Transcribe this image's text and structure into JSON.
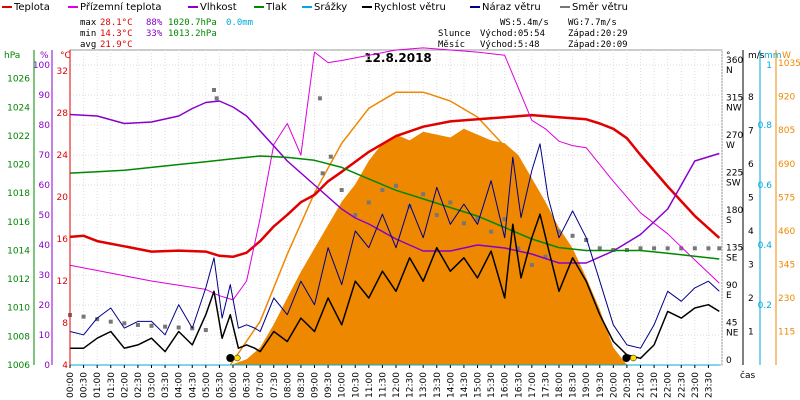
{
  "legend": [
    {
      "label": "Teplota",
      "color": "#e00000"
    },
    {
      "label": "Přízemní teplota",
      "color": "#dd00dd"
    },
    {
      "label": "Vlhkost",
      "color": "#8800cc"
    },
    {
      "label": "Tlak",
      "color": "#008800"
    },
    {
      "label": "Srážky",
      "color": "#00aadd"
    },
    {
      "label": "Rychlost větru",
      "color": "#000000"
    },
    {
      "label": "Náraz větru",
      "color": "#000088"
    },
    {
      "label": "Směr větru",
      "color": "#777777"
    }
  ],
  "stats": {
    "max": {
      "label": "max",
      "temp": "28.1°C",
      "hum": "88%",
      "press": "1020.7hPa",
      "rain": "0.0mm"
    },
    "min": {
      "label": "min",
      "temp": "14.3°C",
      "hum": "33%",
      "press": "1013.2hPa"
    },
    "avg": {
      "label": "avg",
      "temp": "21.9°C"
    }
  },
  "info": {
    "ws": "WS:5.4m/s",
    "wg": "WG:7.7m/s",
    "sun_label": "Slunce",
    "sunrise": "Východ:05:54",
    "sunset": "Západ:20:29",
    "moon_label": "Měsíc",
    "moonrise": "Východ:5:48",
    "moonset": "Západ:20:09"
  },
  "chart_data": {
    "type": "line",
    "title": "12.8.2018",
    "x_axis_label": "čas",
    "x_ticks": [
      "00:00",
      "00:30",
      "01:00",
      "01:30",
      "02:00",
      "02:30",
      "03:00",
      "03:30",
      "04:00",
      "04:30",
      "05:00",
      "05:30",
      "06:00",
      "06:30",
      "07:00",
      "07:30",
      "08:00",
      "08:30",
      "09:00",
      "09:30",
      "10:00",
      "10:30",
      "11:00",
      "11:30",
      "12:00",
      "12:30",
      "13:00",
      "13:30",
      "14:00",
      "14:30",
      "15:00",
      "15:30",
      "16:00",
      "16:30",
      "17:00",
      "17:30",
      "18:00",
      "18:30",
      "19:00",
      "19:30",
      "20:00",
      "20:30",
      "21:00",
      "21:30",
      "22:00",
      "22:30",
      "23:00",
      "23:30"
    ],
    "axes": {
      "pressure": {
        "label": "hPa",
        "ticks": [
          1006,
          1008,
          1010,
          1012,
          1014,
          1016,
          1018,
          1020,
          1022,
          1024,
          1026
        ],
        "ylim": [
          1006,
          1028
        ],
        "color": "#008800"
      },
      "humidity": {
        "label": "%",
        "ticks": [
          0,
          10,
          20,
          30,
          40,
          50,
          60,
          70,
          80,
          90,
          100
        ],
        "ylim": [
          0,
          105
        ],
        "color": "#8800cc"
      },
      "temperature": {
        "label": "°C",
        "ticks": [
          4,
          8,
          12,
          16,
          20,
          24,
          28,
          32
        ],
        "ylim": [
          4,
          34
        ],
        "color": "#e00000"
      },
      "direction": {
        "label": "°",
        "ticks": [
          {
            "v": 0,
            "t": "0"
          },
          {
            "v": 45,
            "t": "45 NE"
          },
          {
            "v": 90,
            "t": "90 E"
          },
          {
            "v": 135,
            "t": "135 SE"
          },
          {
            "v": 180,
            "t": "180 S"
          },
          {
            "v": 225,
            "t": "225 SW"
          },
          {
            "v": 270,
            "t": "270 W"
          },
          {
            "v": 315,
            "t": "315 NW"
          },
          {
            "v": 360,
            "t": "360 N"
          }
        ],
        "ylim": [
          0,
          378
        ]
      },
      "wind": {
        "label": "m/s",
        "ticks": [
          1,
          2,
          3,
          4,
          5,
          6,
          7,
          8
        ],
        "ylim": [
          0,
          9.4
        ]
      },
      "rain": {
        "label": "mm",
        "ticks": [
          0.2,
          0.4,
          0.6,
          0.8,
          1
        ],
        "ylim": [
          0,
          1.05
        ],
        "color": "#00aadd"
      },
      "solar": {
        "label": "W",
        "ticks": [
          115,
          230,
          345,
          460,
          575,
          690,
          805,
          920,
          1035
        ],
        "ylim": [
          0,
          1080
        ],
        "color": "#ee8800"
      }
    },
    "series": [
      {
        "name": "Teplota",
        "axis": "temperature",
        "color": "#e00000",
        "x": [
          0,
          0.5,
          1,
          2,
          3,
          4,
          5,
          5.5,
          6,
          6.5,
          7,
          7.5,
          8,
          8.5,
          9,
          9.5,
          10,
          11,
          12,
          13,
          14,
          15,
          16,
          17,
          18,
          19,
          19.5,
          20,
          20.5,
          21,
          22,
          23,
          23.9
        ],
        "y": [
          16.2,
          16.3,
          15.8,
          15.3,
          14.8,
          14.9,
          14.8,
          14.4,
          14.3,
          14.7,
          15.8,
          17.2,
          18.3,
          19.5,
          20.2,
          21.5,
          22.4,
          24.3,
          25.8,
          26.7,
          27.2,
          27.4,
          27.6,
          27.8,
          27.6,
          27.4,
          27.0,
          26.5,
          25.6,
          24.0,
          21.0,
          18.2,
          16.1
        ]
      },
      {
        "name": "Přízemní teplota",
        "axis": "temperature",
        "color": "#dd00dd",
        "x": [
          0,
          1,
          2,
          3,
          4,
          5,
          5.5,
          6,
          6.5,
          7,
          7.5,
          8,
          8.5,
          9,
          9.5,
          10,
          11,
          12,
          13,
          14,
          15,
          16,
          17,
          17.5,
          18,
          18.5,
          19,
          20,
          21,
          22,
          23,
          23.9
        ],
        "y": [
          13.5,
          13.0,
          12.5,
          12.0,
          11.6,
          11.2,
          10.6,
          10.2,
          12.0,
          18,
          25,
          27,
          24,
          33.8,
          32.8,
          33.0,
          33.5,
          34.0,
          34.2,
          34.0,
          33.8,
          33.5,
          27.3,
          26.5,
          25.3,
          24.9,
          24.7,
          21.5,
          18.5,
          16.5,
          14.0,
          11.8
        ]
      },
      {
        "name": "Vlhkost",
        "axis": "humidity",
        "color": "#8800cc",
        "x": [
          0,
          1,
          2,
          3,
          4,
          4.5,
          5,
          5.5,
          6,
          6.5,
          7,
          7.5,
          8,
          8.5,
          9,
          9.5,
          10,
          10.5,
          11,
          12,
          13,
          14,
          15,
          16,
          17,
          18,
          19,
          20,
          21,
          22,
          22.5,
          23,
          23.9
        ],
        "y": [
          83.5,
          83.0,
          80.5,
          81.0,
          83.0,
          85.5,
          87.5,
          88.0,
          86.0,
          83.0,
          78.0,
          73.0,
          68.0,
          64.0,
          60.0,
          56.0,
          52.0,
          49.0,
          47.0,
          42.0,
          38.0,
          38.0,
          40.0,
          39.0,
          37.0,
          34.0,
          34.0,
          38.0,
          43.5,
          52.0,
          60.0,
          68.0,
          70.5
        ]
      },
      {
        "name": "Tlak",
        "axis": "pressure",
        "color": "#008800",
        "x": [
          0,
          1,
          2,
          3,
          4,
          5,
          6,
          7,
          8,
          9,
          10,
          11,
          12,
          13,
          14,
          15,
          16,
          17,
          18,
          19,
          20,
          21,
          22,
          23,
          23.9
        ],
        "y": [
          1019.4,
          1019.5,
          1019.6,
          1019.8,
          1020.0,
          1020.2,
          1020.4,
          1020.6,
          1020.5,
          1020.3,
          1019.8,
          1019.0,
          1018.2,
          1017.6,
          1017.0,
          1016.4,
          1015.6,
          1014.8,
          1014.2,
          1014.0,
          1014.0,
          1014.0,
          1013.8,
          1013.6,
          1013.4
        ]
      },
      {
        "name": "Rychlost větru",
        "axis": "wind",
        "color": "#000000",
        "x": [
          0,
          0.5,
          1,
          1.5,
          2,
          2.5,
          3,
          3.5,
          4,
          4.5,
          5,
          5.3,
          5.6,
          5.9,
          6.2,
          6.5,
          6.8,
          7,
          7.5,
          8,
          8.5,
          9,
          9.5,
          10,
          10.5,
          11,
          11.5,
          12,
          12.5,
          13,
          13.5,
          14,
          14.5,
          15,
          15.5,
          16,
          16.3,
          16.6,
          17,
          17.3,
          17.6,
          18,
          18.5,
          19,
          19.5,
          20,
          20.5,
          21,
          21.5,
          22,
          22.5,
          23,
          23.5,
          23.9
        ],
        "y": [
          0.5,
          0.5,
          0.8,
          1.0,
          0.5,
          0.6,
          0.8,
          0.4,
          1.0,
          0.6,
          1.5,
          2.2,
          0.8,
          1.5,
          0.5,
          0.6,
          0.5,
          0.4,
          1.0,
          0.7,
          1.4,
          1.0,
          2.0,
          1.2,
          2.5,
          2.0,
          2.8,
          2.2,
          3.2,
          2.5,
          3.5,
          2.8,
          3.2,
          2.6,
          3.4,
          2.0,
          4.2,
          2.6,
          3.8,
          4.5,
          3.5,
          2.2,
          3.2,
          2.5,
          1.5,
          0.7,
          0.3,
          0.2,
          0.6,
          1.6,
          1.4,
          1.7,
          1.8,
          1.6
        ]
      },
      {
        "name": "Náraz větru",
        "axis": "wind",
        "color": "#000088",
        "x": [
          0,
          0.5,
          1,
          1.5,
          2,
          2.5,
          3,
          3.5,
          4,
          4.5,
          5,
          5.3,
          5.6,
          5.9,
          6.2,
          6.5,
          6.8,
          7,
          7.5,
          8,
          8.5,
          9,
          9.5,
          10,
          10.5,
          11,
          11.5,
          12,
          12.5,
          13,
          13.5,
          14,
          14.5,
          15,
          15.5,
          16,
          16.3,
          16.6,
          17,
          17.3,
          17.6,
          18,
          18.5,
          19,
          19.5,
          20,
          20.5,
          21,
          21.5,
          22,
          22.5,
          23,
          23.5,
          23.9
        ],
        "y": [
          1.0,
          0.9,
          1.4,
          1.7,
          1.1,
          1.3,
          1.3,
          0.9,
          1.8,
          1.1,
          2.3,
          3.2,
          1.4,
          2.4,
          1.1,
          1.2,
          1.1,
          1.0,
          2.0,
          1.5,
          2.5,
          1.8,
          3.5,
          2.4,
          4.0,
          3.5,
          4.5,
          3.5,
          4.8,
          3.8,
          5.3,
          4.2,
          4.8,
          4.2,
          5.5,
          3.8,
          6.2,
          4.4,
          5.8,
          6.6,
          5.0,
          3.8,
          4.6,
          3.8,
          2.5,
          1.2,
          0.6,
          0.5,
          1.2,
          2.2,
          1.9,
          2.3,
          2.5,
          2.2
        ]
      },
      {
        "name": "Směr větru",
        "axis": "direction",
        "color": "#777777",
        "x": [
          0,
          0.5,
          1,
          1.5,
          2,
          2.5,
          3,
          3.5,
          4,
          4.5,
          5,
          5.3,
          5.4,
          9.2,
          9.3,
          9.6,
          10,
          10.5,
          11,
          11.5,
          12,
          12.5,
          13,
          13.5,
          14,
          14.5,
          15,
          15.5,
          16,
          16.5,
          17,
          17.5,
          18,
          18.5,
          19,
          19.5,
          20,
          20.5,
          21,
          21.5,
          22,
          22.5,
          23,
          23.5,
          23.9
        ],
        "y": [
          60,
          58,
          55,
          52,
          50,
          48,
          47,
          46,
          45,
          44,
          42,
          330,
          320,
          320,
          230,
          250,
          210,
          180,
          195,
          210,
          215,
          190,
          205,
          180,
          195,
          170,
          175,
          160,
          175,
          140,
          120,
          130,
          160,
          155,
          150,
          140,
          138,
          138,
          140,
          140,
          140,
          140,
          140,
          140,
          140
        ]
      },
      {
        "name": "Srážky",
        "axis": "rain",
        "color": "#00aadd",
        "x": [
          0,
          23.9
        ],
        "y": [
          0,
          0
        ]
      }
    ],
    "solar_radiation": {
      "axis": "solar",
      "color": "#ee8800",
      "x": [
        5.9,
        6.5,
        7,
        7.5,
        8,
        8.5,
        9,
        9.5,
        10,
        10.5,
        11,
        11.5,
        12,
        12.5,
        13,
        13.5,
        14,
        14.5,
        15,
        15.5,
        16,
        16.5,
        17,
        17.5,
        18,
        18.5,
        19,
        19.5,
        20,
        20.5
      ],
      "y": [
        0,
        20,
        60,
        140,
        230,
        320,
        400,
        480,
        560,
        620,
        700,
        760,
        790,
        770,
        800,
        790,
        780,
        810,
        790,
        770,
        760,
        720,
        640,
        560,
        470,
        400,
        300,
        190,
        60,
        0
      ]
    },
    "theoretical_solar": {
      "axis": "solar",
      "color": "#ee8800",
      "x": [
        5.9,
        7,
        8,
        9,
        10,
        11,
        12,
        13,
        13.2,
        14,
        15,
        16,
        17,
        18,
        19,
        20,
        20.5
      ],
      "y": [
        0,
        150,
        380,
        590,
        760,
        880,
        935,
        935,
        930,
        905,
        850,
        750,
        590,
        390,
        170,
        20,
        0
      ]
    },
    "sun_markers": {
      "sunrise_hour": 5.9,
      "sunset_hour": 20.48
    }
  }
}
